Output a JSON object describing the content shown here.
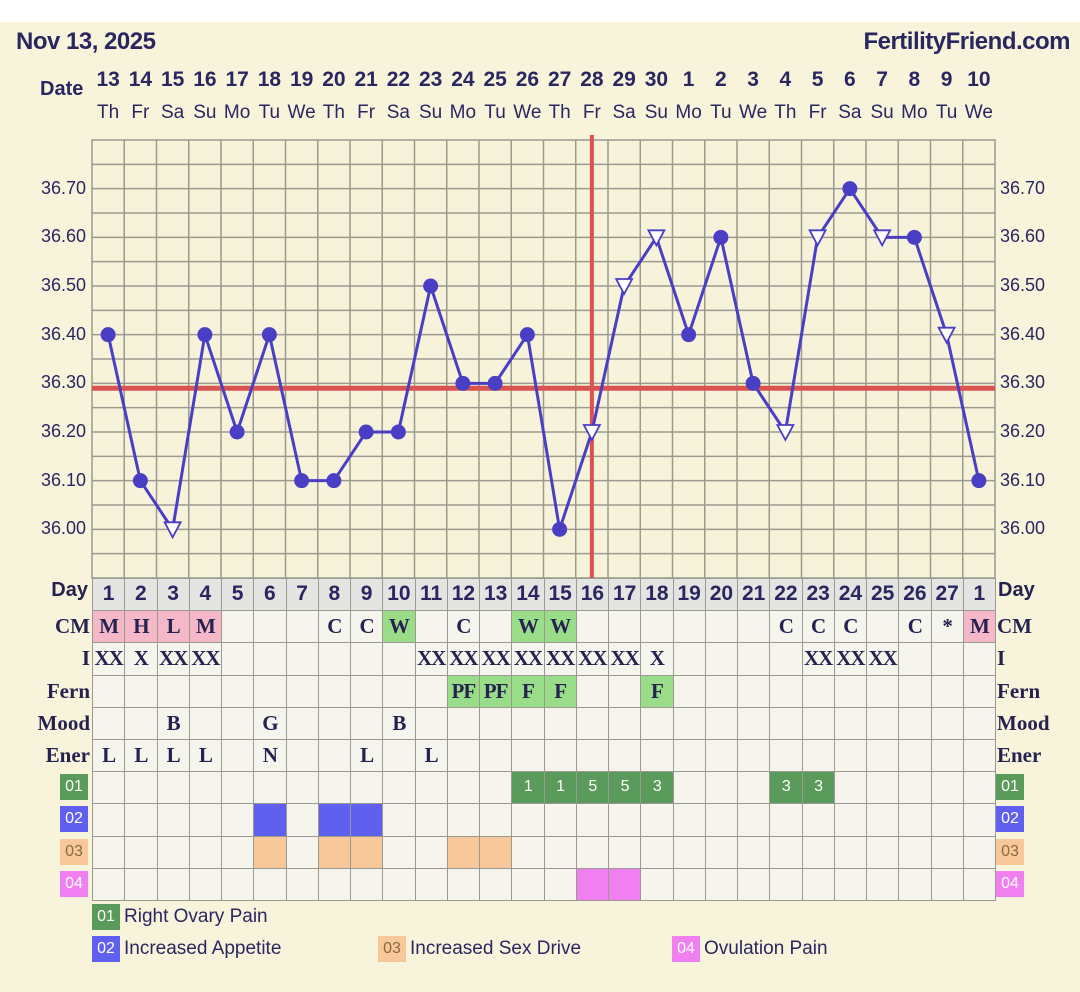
{
  "header": {
    "title": "Nov 13, 2025",
    "brand": "FertilityFriend.com",
    "date_label": "Date"
  },
  "dates": [
    "13",
    "14",
    "15",
    "16",
    "17",
    "18",
    "19",
    "20",
    "21",
    "22",
    "23",
    "24",
    "25",
    "26",
    "27",
    "28",
    "29",
    "30",
    "1",
    "2",
    "3",
    "4",
    "5",
    "6",
    "7",
    "8",
    "9",
    "10"
  ],
  "weekdays": [
    "Th",
    "Fr",
    "Sa",
    "Su",
    "Mo",
    "Tu",
    "We",
    "Th",
    "Fr",
    "Sa",
    "Su",
    "Mo",
    "Tu",
    "We",
    "Th",
    "Fr",
    "Sa",
    "Su",
    "Mo",
    "Tu",
    "We",
    "Th",
    "Fr",
    "Sa",
    "Su",
    "Mo",
    "Tu",
    "We"
  ],
  "colors": {
    "line": "#4a3fc4",
    "coverline": "#d9534f",
    "ovulation_line": "#d9534f",
    "cm_pink": "#f4b8c8",
    "green": "#99dd88",
    "sym01": "#5a9a5a",
    "sym02": "#6060f0",
    "sym03": "#f8c89a",
    "sym04": "#f080f0"
  },
  "chart_data": {
    "type": "line",
    "ylim": [
      35.9,
      36.8
    ],
    "y_ticks": [
      "36.70",
      "36.60",
      "36.50",
      "36.40",
      "36.30",
      "36.20",
      "36.10",
      "36.00"
    ],
    "grid": true,
    "cycle_days": [
      1,
      2,
      3,
      4,
      5,
      6,
      7,
      8,
      9,
      10,
      11,
      12,
      13,
      14,
      15,
      16,
      17,
      18,
      19,
      20,
      21,
      22,
      23,
      24,
      25,
      26,
      27,
      1
    ],
    "temps": [
      36.4,
      36.1,
      36.0,
      36.4,
      36.2,
      36.4,
      36.1,
      36.1,
      36.2,
      36.2,
      36.5,
      36.3,
      36.3,
      36.4,
      36.0,
      36.2,
      36.5,
      36.6,
      36.4,
      36.6,
      36.3,
      36.2,
      36.6,
      36.7,
      36.6,
      36.6,
      36.4,
      36.1
    ],
    "markers": [
      "circle",
      "circle",
      "triangle",
      "circle",
      "circle",
      "circle",
      "circle",
      "circle",
      "circle",
      "circle",
      "circle",
      "circle",
      "circle",
      "circle",
      "circle",
      "triangle",
      "triangle",
      "triangle",
      "circle",
      "circle",
      "circle",
      "triangle",
      "triangle",
      "circle",
      "triangle",
      "circle",
      "triangle",
      "circle"
    ],
    "coverline": 36.29,
    "ovulation_day_index": 16
  },
  "table": {
    "day_label": "Day",
    "rows": [
      {
        "label": "CM",
        "values": [
          "M",
          "H",
          "L",
          "M",
          "",
          "",
          "",
          "C",
          "C",
          "W",
          "",
          "C",
          "",
          "W",
          "W",
          "",
          "",
          "",
          "",
          "",
          "",
          "C",
          "C",
          "C",
          "",
          "C",
          "*",
          "M"
        ],
        "colors": [
          "pink",
          "pink",
          "pink",
          "pink",
          "",
          "",
          "",
          "",
          "",
          "green",
          "",
          "",
          "",
          "green",
          "green",
          "",
          "",
          "",
          "",
          "",
          "",
          "",
          "",
          "",
          "",
          "",
          "",
          "pink"
        ]
      },
      {
        "label": "I",
        "values": [
          "XX",
          "X",
          "XX",
          "XX",
          "",
          "",
          "",
          "",
          "",
          "",
          "XX",
          "XX",
          "XX",
          "XX",
          "XX",
          "XX",
          "XX",
          "X",
          "",
          "",
          "",
          "",
          "XX",
          "XX",
          "XX",
          "",
          "",
          ""
        ],
        "colors": []
      },
      {
        "label": "Fern",
        "values": [
          "",
          "",
          "",
          "",
          "",
          "",
          "",
          "",
          "",
          "",
          "",
          "PF",
          "PF",
          "F",
          "F",
          "",
          "",
          "F",
          "",
          "",
          "",
          "",
          "",
          "",
          "",
          "",
          "",
          ""
        ],
        "colors": [
          "",
          "",
          "",
          "",
          "",
          "",
          "",
          "",
          "",
          "",
          "",
          "green",
          "green",
          "green",
          "green",
          "",
          "",
          "green",
          "",
          "",
          "",
          "",
          "",
          "",
          "",
          "",
          "",
          ""
        ]
      },
      {
        "label": "Mood",
        "values": [
          "",
          "",
          "B",
          "",
          "",
          "G",
          "",
          "",
          "",
          "B",
          "",
          "",
          "",
          "",
          "",
          "",
          "",
          "",
          "",
          "",
          "",
          "",
          "",
          "",
          "",
          "",
          "",
          ""
        ],
        "colors": []
      },
      {
        "label": "Ener",
        "values": [
          "L",
          "L",
          "L",
          "L",
          "",
          "N",
          "",
          "",
          "L",
          "",
          "L",
          "",
          "",
          "",
          "",
          "",
          "",
          "",
          "",
          "",
          "",
          "",
          "",
          "",
          "",
          "",
          "",
          ""
        ],
        "colors": []
      }
    ],
    "symptoms": [
      {
        "code": "01",
        "name": "Right Ovary Pain",
        "color": "sym01",
        "values": [
          "",
          "",
          "",
          "",
          "",
          "",
          "",
          "",
          "",
          "",
          "",
          "",
          "",
          "1",
          "1",
          "5",
          "5",
          "3",
          "",
          "",
          "",
          "3",
          "3",
          "",
          "",
          "",
          "",
          ""
        ]
      },
      {
        "code": "02",
        "name": "Increased Appetite",
        "color": "sym02",
        "days": [
          6,
          8,
          9
        ]
      },
      {
        "code": "03",
        "name": "Increased Sex Drive",
        "color": "sym03",
        "days": [
          6,
          8,
          9,
          12,
          13
        ]
      },
      {
        "code": "04",
        "name": "Ovulation Pain",
        "color": "sym04",
        "days": [
          16,
          17
        ]
      }
    ]
  }
}
